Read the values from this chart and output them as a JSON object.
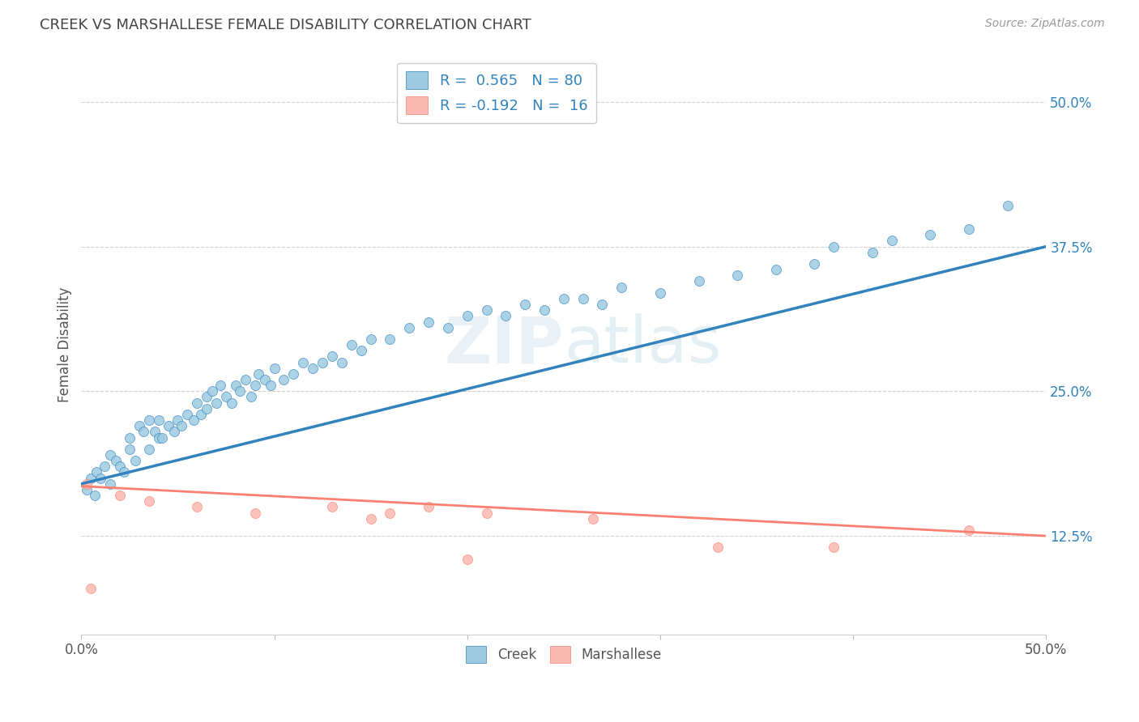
{
  "title": "CREEK VS MARSHALLESE FEMALE DISABILITY CORRELATION CHART",
  "source": "Source: ZipAtlas.com",
  "ylabel": "Female Disability",
  "xlim": [
    0.0,
    0.5
  ],
  "ylim": [
    0.04,
    0.54
  ],
  "ytick_vals": [
    0.125,
    0.25,
    0.375,
    0.5
  ],
  "ytick_labels": [
    "12.5%",
    "25.0%",
    "37.5%",
    "50.0%"
  ],
  "xtick_vals": [
    0.0,
    0.1,
    0.2,
    0.3,
    0.4,
    0.5
  ],
  "xtick_labels": [
    "0.0%",
    "",
    "",
    "",
    "",
    "50.0%"
  ],
  "creek_color": "#9ecae1",
  "marshallese_color": "#fcb9b2",
  "creek_line_color": "#3182bd",
  "marshallese_line_color": "#fa8072",
  "creek_R": 0.565,
  "creek_N": 80,
  "marsh_R": -0.192,
  "marsh_N": 16,
  "watermark": "ZIPatlas",
  "title_color": "#444444",
  "background_color": "#ffffff",
  "grid_color": "#cccccc",
  "creek_x": [
    0.003,
    0.005,
    0.007,
    0.008,
    0.01,
    0.012,
    0.015,
    0.015,
    0.018,
    0.02,
    0.022,
    0.025,
    0.025,
    0.028,
    0.03,
    0.032,
    0.035,
    0.035,
    0.038,
    0.04,
    0.04,
    0.042,
    0.045,
    0.048,
    0.05,
    0.052,
    0.055,
    0.058,
    0.06,
    0.062,
    0.065,
    0.065,
    0.068,
    0.07,
    0.072,
    0.075,
    0.078,
    0.08,
    0.082,
    0.085,
    0.088,
    0.09,
    0.092,
    0.095,
    0.098,
    0.1,
    0.105,
    0.11,
    0.115,
    0.12,
    0.125,
    0.13,
    0.135,
    0.14,
    0.145,
    0.15,
    0.16,
    0.17,
    0.18,
    0.19,
    0.2,
    0.21,
    0.22,
    0.23,
    0.24,
    0.25,
    0.26,
    0.27,
    0.28,
    0.3,
    0.32,
    0.34,
    0.36,
    0.38,
    0.39,
    0.41,
    0.42,
    0.44,
    0.46,
    0.48
  ],
  "creek_y": [
    0.165,
    0.175,
    0.16,
    0.18,
    0.175,
    0.185,
    0.17,
    0.195,
    0.19,
    0.185,
    0.18,
    0.2,
    0.21,
    0.19,
    0.22,
    0.215,
    0.2,
    0.225,
    0.215,
    0.21,
    0.225,
    0.21,
    0.22,
    0.215,
    0.225,
    0.22,
    0.23,
    0.225,
    0.24,
    0.23,
    0.235,
    0.245,
    0.25,
    0.24,
    0.255,
    0.245,
    0.24,
    0.255,
    0.25,
    0.26,
    0.245,
    0.255,
    0.265,
    0.26,
    0.255,
    0.27,
    0.26,
    0.265,
    0.275,
    0.27,
    0.275,
    0.28,
    0.275,
    0.29,
    0.285,
    0.295,
    0.295,
    0.305,
    0.31,
    0.305,
    0.315,
    0.32,
    0.315,
    0.325,
    0.32,
    0.33,
    0.33,
    0.325,
    0.34,
    0.335,
    0.345,
    0.35,
    0.355,
    0.36,
    0.375,
    0.37,
    0.38,
    0.385,
    0.39,
    0.41
  ],
  "marsh_x": [
    0.003,
    0.005,
    0.02,
    0.035,
    0.06,
    0.09,
    0.13,
    0.15,
    0.16,
    0.18,
    0.2,
    0.21,
    0.265,
    0.33,
    0.39,
    0.46
  ],
  "marsh_y": [
    0.17,
    0.08,
    0.16,
    0.155,
    0.15,
    0.145,
    0.15,
    0.14,
    0.145,
    0.15,
    0.105,
    0.145,
    0.14,
    0.115,
    0.115,
    0.13
  ],
  "creek_line_x": [
    0.0,
    0.5
  ],
  "creek_line_y": [
    0.17,
    0.375
  ],
  "marsh_line_x": [
    0.0,
    0.5
  ],
  "marsh_line_y": [
    0.168,
    0.125
  ]
}
